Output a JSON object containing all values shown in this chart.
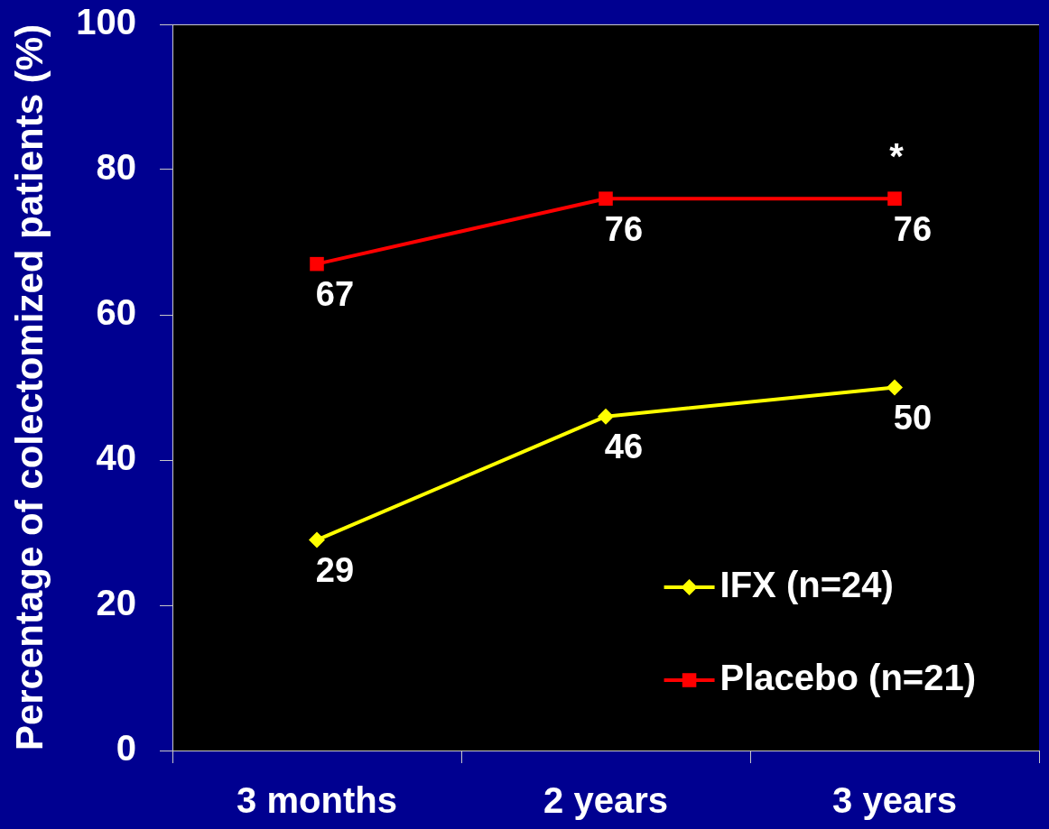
{
  "chart_data": {
    "type": "line",
    "categories": [
      "3 months",
      "2 years",
      "3 years"
    ],
    "series": [
      {
        "name": "IFX (n=24)",
        "color": "#ffff00",
        "marker": "diamond",
        "values": [
          29,
          46,
          50
        ]
      },
      {
        "name": "Placebo (n=21)",
        "color": "#ff0000",
        "marker": "square",
        "values": [
          67,
          76,
          76
        ]
      }
    ],
    "ylabel": "Percentage of colectomized patients (%)",
    "ylim": [
      0,
      100
    ],
    "yticks": [
      0,
      20,
      40,
      60,
      80,
      100
    ],
    "data_labels": true,
    "legend": "bottom right",
    "annotations": [
      {
        "text": "*",
        "x": "3 years",
        "y": 76
      }
    ]
  }
}
